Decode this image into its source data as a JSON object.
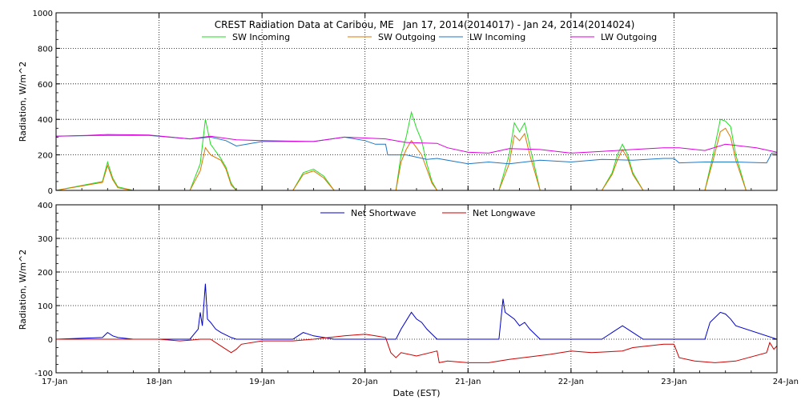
{
  "chart_data": [
    {
      "type": "line",
      "title": "CREST Radiation Data at Caribou, ME   Jan 17, 2014(2014017) - Jan 24, 2014(2014024)",
      "ylabel": "Radiation,  W/m^2",
      "xlabel": "",
      "xlim": [
        0,
        7
      ],
      "ylim": [
        0,
        1000
      ],
      "yticks": [
        "0",
        "200",
        "400",
        "600",
        "800",
        "1000"
      ],
      "grid": true,
      "legend": "top",
      "series": [
        {
          "name": "SW Incoming",
          "color": "#22dd22",
          "x": [
            0,
            0.45,
            0.5,
            0.55,
            0.6,
            0.75,
            1.3,
            1.4,
            1.45,
            1.5,
            1.6,
            1.65,
            1.7,
            1.75,
            2.3,
            2.4,
            2.5,
            2.6,
            2.7,
            3.3,
            3.35,
            3.4,
            3.45,
            3.5,
            3.55,
            3.6,
            3.65,
            3.7,
            4.3,
            4.4,
            4.45,
            4.5,
            4.55,
            4.6,
            4.7,
            5.3,
            5.4,
            5.45,
            5.5,
            5.55,
            5.6,
            5.7,
            6.3,
            6.38,
            6.45,
            6.5,
            6.55,
            6.6,
            6.7,
            7
          ],
          "values": [
            0,
            50,
            160,
            70,
            20,
            0,
            0,
            150,
            400,
            260,
            180,
            130,
            40,
            0,
            0,
            100,
            120,
            80,
            0,
            0,
            200,
            300,
            440,
            350,
            280,
            150,
            50,
            0,
            0,
            200,
            380,
            330,
            380,
            250,
            0,
            0,
            100,
            200,
            260,
            200,
            100,
            0,
            0,
            200,
            400,
            390,
            360,
            200,
            0,
            0
          ]
        },
        {
          "name": "SW Outgoing",
          "color": "#dd7700",
          "x": [
            0,
            0.45,
            0.5,
            0.55,
            0.6,
            0.75,
            1.3,
            1.4,
            1.45,
            1.5,
            1.6,
            1.65,
            1.7,
            1.75,
            2.3,
            2.4,
            2.5,
            2.6,
            2.7,
            3.3,
            3.35,
            3.4,
            3.45,
            3.5,
            3.55,
            3.6,
            3.65,
            3.7,
            4.3,
            4.4,
            4.45,
            4.5,
            4.55,
            4.6,
            4.7,
            5.3,
            5.4,
            5.45,
            5.5,
            5.55,
            5.6,
            5.7,
            6.3,
            6.38,
            6.45,
            6.5,
            6.55,
            6.6,
            6.7,
            7
          ],
          "values": [
            0,
            45,
            140,
            60,
            15,
            0,
            0,
            110,
            240,
            200,
            170,
            120,
            30,
            0,
            0,
            90,
            110,
            70,
            0,
            0,
            160,
            230,
            280,
            240,
            200,
            120,
            40,
            0,
            0,
            150,
            310,
            280,
            320,
            200,
            0,
            0,
            90,
            170,
            230,
            180,
            90,
            0,
            0,
            170,
            330,
            350,
            300,
            170,
            0,
            0
          ]
        },
        {
          "name": "LW Incoming",
          "color": "#1f77c4",
          "x": [
            0,
            0.5,
            0.9,
            1.3,
            1.5,
            1.65,
            1.75,
            1.85,
            2.0,
            2.5,
            2.8,
            3.0,
            3.1,
            3.2,
            3.22,
            3.4,
            3.6,
            3.7,
            3.8,
            4.0,
            4.2,
            4.4,
            4.7,
            5.0,
            5.3,
            5.6,
            5.9,
            6.0,
            6.05,
            6.3,
            6.6,
            6.9,
            6.95,
            7
          ],
          "values": [
            305,
            310,
            310,
            290,
            300,
            280,
            250,
            260,
            275,
            275,
            300,
            280,
            260,
            260,
            200,
            200,
            175,
            180,
            170,
            150,
            160,
            150,
            170,
            160,
            175,
            170,
            180,
            180,
            155,
            160,
            160,
            155,
            210,
            210
          ]
        },
        {
          "name": "LW Outgoing",
          "color": "#dd00dd",
          "x": [
            0,
            0.3,
            0.5,
            0.9,
            1.3,
            1.5,
            1.75,
            2.0,
            2.5,
            2.8,
            3.0,
            3.2,
            3.4,
            3.7,
            3.8,
            4.0,
            4.2,
            4.4,
            4.7,
            5.0,
            5.3,
            5.6,
            5.9,
            6.05,
            6.3,
            6.5,
            6.8,
            7
          ],
          "values": [
            305,
            310,
            315,
            312,
            290,
            305,
            285,
            280,
            275,
            300,
            295,
            290,
            270,
            265,
            240,
            215,
            210,
            235,
            230,
            210,
            220,
            230,
            240,
            240,
            225,
            260,
            240,
            215
          ]
        }
      ]
    },
    {
      "type": "line",
      "title": "",
      "ylabel": "Radiation,  W/m^2",
      "xlabel": "Date (EST)",
      "xlim": [
        0,
        7
      ],
      "ylim": [
        -100,
        400
      ],
      "yticks": [
        "-100",
        "0",
        "100",
        "200",
        "300",
        "400"
      ],
      "xticks": [
        "17-Jan",
        "18-Jan",
        "19-Jan",
        "20-Jan",
        "21-Jan",
        "22-Jan",
        "23-Jan",
        "24-Jan"
      ],
      "grid": true,
      "legend": "top",
      "series": [
        {
          "name": "Net Shortwave",
          "color": "#0000cc",
          "x": [
            0,
            0.45,
            0.5,
            0.55,
            0.6,
            0.75,
            1.3,
            1.38,
            1.4,
            1.42,
            1.45,
            1.47,
            1.5,
            1.55,
            1.6,
            1.7,
            1.75,
            2.3,
            2.35,
            2.4,
            2.5,
            2.6,
            2.7,
            3.3,
            3.35,
            3.45,
            3.5,
            3.55,
            3.6,
            3.7,
            4.3,
            4.34,
            4.36,
            4.45,
            4.5,
            4.55,
            4.6,
            4.7,
            5.3,
            5.4,
            5.5,
            5.6,
            5.7,
            6.3,
            6.35,
            6.45,
            6.5,
            6.55,
            6.6,
            7
          ],
          "values": [
            0,
            5,
            20,
            10,
            5,
            0,
            0,
            30,
            80,
            40,
            165,
            60,
            50,
            30,
            20,
            5,
            0,
            0,
            10,
            20,
            10,
            5,
            0,
            0,
            30,
            80,
            60,
            50,
            30,
            0,
            0,
            120,
            80,
            60,
            40,
            50,
            30,
            0,
            0,
            20,
            40,
            20,
            0,
            0,
            50,
            80,
            75,
            60,
            40,
            0
          ]
        },
        {
          "name": "Net Longwave",
          "color": "#cc0000",
          "x": [
            0,
            0.7,
            1.0,
            1.2,
            1.3,
            1.4,
            1.5,
            1.6,
            1.7,
            1.75,
            1.8,
            2.0,
            2.3,
            2.5,
            2.8,
            3.0,
            3.1,
            3.2,
            3.25,
            3.3,
            3.35,
            3.5,
            3.7,
            3.72,
            3.8,
            4.0,
            4.2,
            4.4,
            4.8,
            5.0,
            5.2,
            5.5,
            5.6,
            5.9,
            6.0,
            6.05,
            6.2,
            6.4,
            6.6,
            6.9,
            6.93,
            6.97,
            7
          ],
          "values": [
            0,
            0,
            0,
            -5,
            -3,
            0,
            0,
            -20,
            -40,
            -30,
            -15,
            -5,
            -5,
            0,
            10,
            15,
            10,
            5,
            -40,
            -55,
            -40,
            -50,
            -35,
            -70,
            -65,
            -70,
            -70,
            -60,
            -45,
            -35,
            -40,
            -35,
            -25,
            -15,
            -15,
            -55,
            -65,
            -70,
            -65,
            -40,
            -10,
            -30,
            -20
          ]
        }
      ]
    }
  ]
}
